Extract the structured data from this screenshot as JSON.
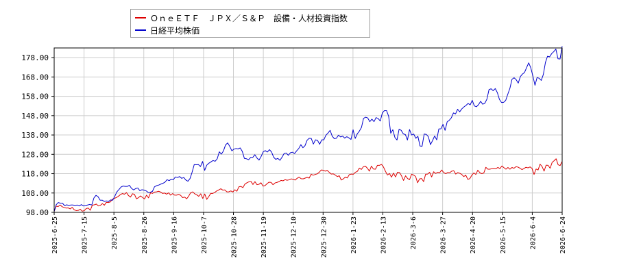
{
  "chart_data": {
    "type": "line",
    "title": "",
    "xlabel": "",
    "ylabel": "",
    "ylim": [
      98,
      183
    ],
    "yticks": [
      "98.00",
      "108.00",
      "118.00",
      "128.00",
      "138.00",
      "148.00",
      "158.00",
      "168.00",
      "178.00"
    ],
    "x_ticks": [
      "2025-6-25",
      "2025-7-15",
      "2025-8-5",
      "2025-8-26",
      "2025-9-16",
      "2025-10-7",
      "2025-10-28",
      "2025-11-19",
      "2025-12-10",
      "2025-12-30",
      "2026-1-23",
      "2026-2-13",
      "2026-3-6",
      "2026-3-27",
      "2026-4-20",
      "2026-5-15",
      "2026-6-4",
      "2026-6-24"
    ],
    "grid": true,
    "legend_position": "top-left",
    "series": [
      {
        "name": "ＯｎｅＥＴＦ　ＪＰＸ／Ｓ＆Ｐ　設備・人材投資指数",
        "color": "#dd0000",
        "values": [
          98.5,
          101.2,
          101.0,
          101.8,
          100.9,
          100.5,
          100.2,
          100.3,
          99.8,
          100.6,
          99.3,
          98.9,
          99.0,
          99.6,
          98.6,
          98.9,
          100.0,
          100.2,
          99.1,
          101.7,
          101.9,
          102.3,
          101.3,
          101.6,
          102.5,
          101.7,
          103.2,
          103.1,
          103.4,
          104.8,
          105.2,
          105.7,
          106.3,
          107.2,
          107.7,
          107.4,
          108.2,
          106.7,
          105.9,
          107.6,
          107.3,
          105.0,
          105.6,
          106.5,
          105.7,
          104.9,
          106.9,
          105.5,
          108.1,
          107.8,
          108.5,
          108.6,
          108.9,
          108.5,
          107.8,
          108.0,
          107.4,
          108.1,
          106.9,
          107.7,
          106.9,
          106.9,
          107.3,
          106.8,
          105.6,
          105.9,
          105.0,
          106.4,
          108.2,
          108.6,
          107.6,
          107.1,
          106.3,
          107.6,
          105.2,
          107.5,
          104.7,
          106.2,
          107.8,
          107.8,
          108.3,
          109.1,
          109.6,
          110.2,
          109.5,
          109.6,
          108.6,
          108.6,
          109.1,
          108.5,
          109.7,
          108.9,
          111.2,
          111.4,
          110.8,
          112.6,
          113.3,
          113.8,
          114.0,
          112.4,
          113.9,
          112.3,
          112.5,
          113.3,
          111.6,
          111.8,
          112.8,
          113.6,
          113.5,
          112.3,
          113.2,
          113.5,
          113.9,
          114.5,
          114.3,
          114.9,
          114.6,
          114.8,
          115.3,
          115.1,
          114.7,
          115.6,
          116.2,
          115.4,
          115.3,
          115.7,
          116.1,
          115.7,
          117.7,
          117.2,
          117.6,
          117.9,
          118.7,
          119.9,
          119.8,
          119.3,
          119.7,
          118.7,
          117.8,
          117.9,
          117.3,
          116.5,
          116.9,
          114.7,
          115.3,
          116.2,
          115.8,
          117.5,
          117.8,
          117.7,
          118.7,
          119.2,
          120.9,
          120.2,
          121.6,
          121.9,
          120.8,
          119.3,
          121.9,
          120.4,
          120.3,
          122.3,
          122.3,
          122.8,
          121.5,
          119.2,
          117.3,
          118.1,
          116.2,
          118.3,
          116.3,
          118.7,
          118.6,
          116.9,
          114.5,
          116.9,
          115.5,
          114.9,
          117.7,
          117.3,
          116.6,
          113.3,
          115.3,
          115.5,
          113.9,
          117.7,
          117.8,
          118.7,
          116.3,
          119.0,
          118.1,
          118.7,
          118.5,
          119.9,
          118.6,
          118.0,
          118.6,
          118.5,
          119.3,
          119.5,
          117.8,
          118.6,
          118.2,
          117.6,
          116.5,
          117.2,
          115.1,
          115.4,
          117.2,
          118.4,
          117.6,
          119.8,
          118.5,
          118.0,
          118.4,
          121.3,
          120.3,
          120.3,
          120.6,
          120.7,
          120.6,
          121.2,
          120.6,
          122.0,
          121.1,
          120.3,
          121.2,
          120.3,
          121.2,
          120.8,
          121.6,
          121.4,
          120.8,
          120.1,
          120.7,
          121.3,
          121.0,
          121.5,
          120.7,
          117.6,
          120.4,
          119.9,
          122.9,
          121.7,
          119.3,
          122.4,
          122.3,
          120.8,
          123.8,
          124.7,
          125.7,
          122.6,
          122.2,
          124.4
        ]
      },
      {
        "name": "日経平均株価",
        "color": "#0000cc",
        "values": [
          98.5,
          102.0,
          103.1,
          102.7,
          102.7,
          101.5,
          101.9,
          101.6,
          101.8,
          101.8,
          101.5,
          101.8,
          101.3,
          102.0,
          101.3,
          101.4,
          101.8,
          102.1,
          101.8,
          105.4,
          106.8,
          106.1,
          104.3,
          104.3,
          103.6,
          103.9,
          103.6,
          104.4,
          104.3,
          106.3,
          108.6,
          109.8,
          111.1,
          111.6,
          111.4,
          111.4,
          112.0,
          110.4,
          109.6,
          110.3,
          110.6,
          109.2,
          109.7,
          109.5,
          109.1,
          108.3,
          108.4,
          108.8,
          111.2,
          111.8,
          112.1,
          112.6,
          113.0,
          113.6,
          114.9,
          114.4,
          115.1,
          114.9,
          116.3,
          116.0,
          116.5,
          115.6,
          116.0,
          114.7,
          114.1,
          115.5,
          118.8,
          122.7,
          122.6,
          122.7,
          121.7,
          124.3,
          119.7,
          122.4,
          123.4,
          124.1,
          124.8,
          124.4,
          125.7,
          129.3,
          128.1,
          129.8,
          132.9,
          133.9,
          132.1,
          129.8,
          130.7,
          131.0,
          130.8,
          131.3,
          129.5,
          125.9,
          125.7,
          125.2,
          126.4,
          126.4,
          127.8,
          126.1,
          125.0,
          126.9,
          129.3,
          129.9,
          129.2,
          130.4,
          129.2,
          126.5,
          125.4,
          125.9,
          124.9,
          126.5,
          128.4,
          128.7,
          127.5,
          128.8,
          129.1,
          128.4,
          129.8,
          131.0,
          133.0,
          131.4,
          132.5,
          135.3,
          136.3,
          136.2,
          133.3,
          135.5,
          135.2,
          133.2,
          135.5,
          135.5,
          137.9,
          139.0,
          140.4,
          137.4,
          136.1,
          136.3,
          137.9,
          137.0,
          137.4,
          136.4,
          137.1,
          136.5,
          135.7,
          140.7,
          136.2,
          138.6,
          140.0,
          141.9,
          146.6,
          147.2,
          146.8,
          144.9,
          146.2,
          144.9,
          147.0,
          146.5,
          145.2,
          149.5,
          150.6,
          150.6,
          147.7,
          138.9,
          140.7,
          136.7,
          135.4,
          141.0,
          140.4,
          138.6,
          138.2,
          135.4,
          140.8,
          138.0,
          138.5,
          136.3,
          137.3,
          132.3,
          132.2,
          138.5,
          138.3,
          137.1,
          133.0,
          135.1,
          137.5,
          135.5,
          141.1,
          141.2,
          143.5,
          140.4,
          144.8,
          145.6,
          146.9,
          149.4,
          148.9,
          151.3,
          150.0,
          151.5,
          152.5,
          153.3,
          154.3,
          153.6,
          155.9,
          153.0,
          152.6,
          153.7,
          155.4,
          153.9,
          154.4,
          156.5,
          161.4,
          161.9,
          160.9,
          162.0,
          159.9,
          156.4,
          154.8,
          154.9,
          155.9,
          159.1,
          162.1,
          166.8,
          167.6,
          166.6,
          164.8,
          168.2,
          169.5,
          170.3,
          172.9,
          175.3,
          172.7,
          168.5,
          163.7,
          167.7,
          167.3,
          166.2,
          169.3,
          175.5,
          178.7,
          178.4,
          180.1,
          181.1,
          182.4,
          177.4,
          177.3,
          183.9
        ]
      }
    ]
  }
}
